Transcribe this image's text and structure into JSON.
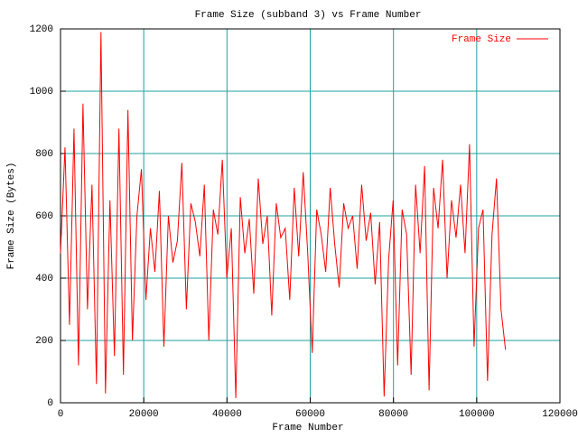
{
  "chart_data": {
    "type": "line",
    "title": "Frame Size (subband 3) vs Frame Number",
    "x_label": "Frame Number",
    "y_label": "Frame Size (Bytes)",
    "xlim": [
      0,
      120000
    ],
    "xticks": [
      0,
      20000,
      40000,
      60000,
      80000,
      100000,
      120000
    ],
    "ylim": [
      0,
      1200
    ],
    "yticks": [
      0,
      200,
      400,
      600,
      800,
      1000,
      1200
    ],
    "grid": true,
    "legend": "top-right",
    "x": [
      0,
      1080,
      2160,
      3240,
      4320,
      5400,
      6480,
      7560,
      8640,
      9720,
      10800,
      11880,
      12960,
      14040,
      15120,
      16200,
      17280,
      18360,
      19440,
      20520,
      21600,
      22680,
      23760,
      24840,
      25920,
      27000,
      28080,
      29160,
      30240,
      31320,
      32400,
      33480,
      34560,
      35640,
      36720,
      37800,
      38880,
      39960,
      41040,
      42120,
      43200,
      44280,
      45360,
      46440,
      47520,
      48600,
      49680,
      50760,
      51840,
      52920,
      54000,
      55080,
      56160,
      57240,
      58320,
      59400,
      60480,
      61560,
      62640,
      63720,
      64800,
      65880,
      66960,
      68040,
      69120,
      70200,
      71280,
      72360,
      73440,
      74520,
      75600,
      76680,
      77760,
      78840,
      79920,
      81000,
      82080,
      83160,
      84240,
      85320,
      86400,
      87480,
      88560,
      89640,
      90720,
      91800,
      92880,
      93960,
      95040,
      96120,
      97200,
      98280,
      99360,
      100440,
      101520,
      102600,
      103680,
      104760,
      105840,
      106920
    ],
    "series": [
      {
        "name": "Frame Size",
        "color": "#ff0000",
        "values": [
          480,
          820,
          250,
          880,
          120,
          960,
          300,
          700,
          60,
          1190,
          30,
          650,
          150,
          880,
          90,
          940,
          200,
          600,
          750,
          330,
          560,
          420,
          680,
          180,
          600,
          450,
          520,
          770,
          300,
          640,
          580,
          470,
          700,
          200,
          620,
          540,
          780,
          400,
          560,
          15,
          660,
          480,
          590,
          350,
          720,
          510,
          600,
          280,
          640,
          530,
          560,
          330,
          690,
          470,
          740,
          480,
          160,
          620,
          540,
          420,
          690,
          510,
          370,
          640,
          560,
          600,
          430,
          700,
          520,
          610,
          380,
          580,
          20,
          460,
          650,
          120,
          620,
          540,
          90,
          700,
          480,
          760,
          40,
          690,
          560,
          780,
          400,
          650,
          530,
          700,
          480,
          830,
          180,
          560,
          620,
          70,
          540,
          720,
          300,
          170
        ]
      }
    ]
  }
}
